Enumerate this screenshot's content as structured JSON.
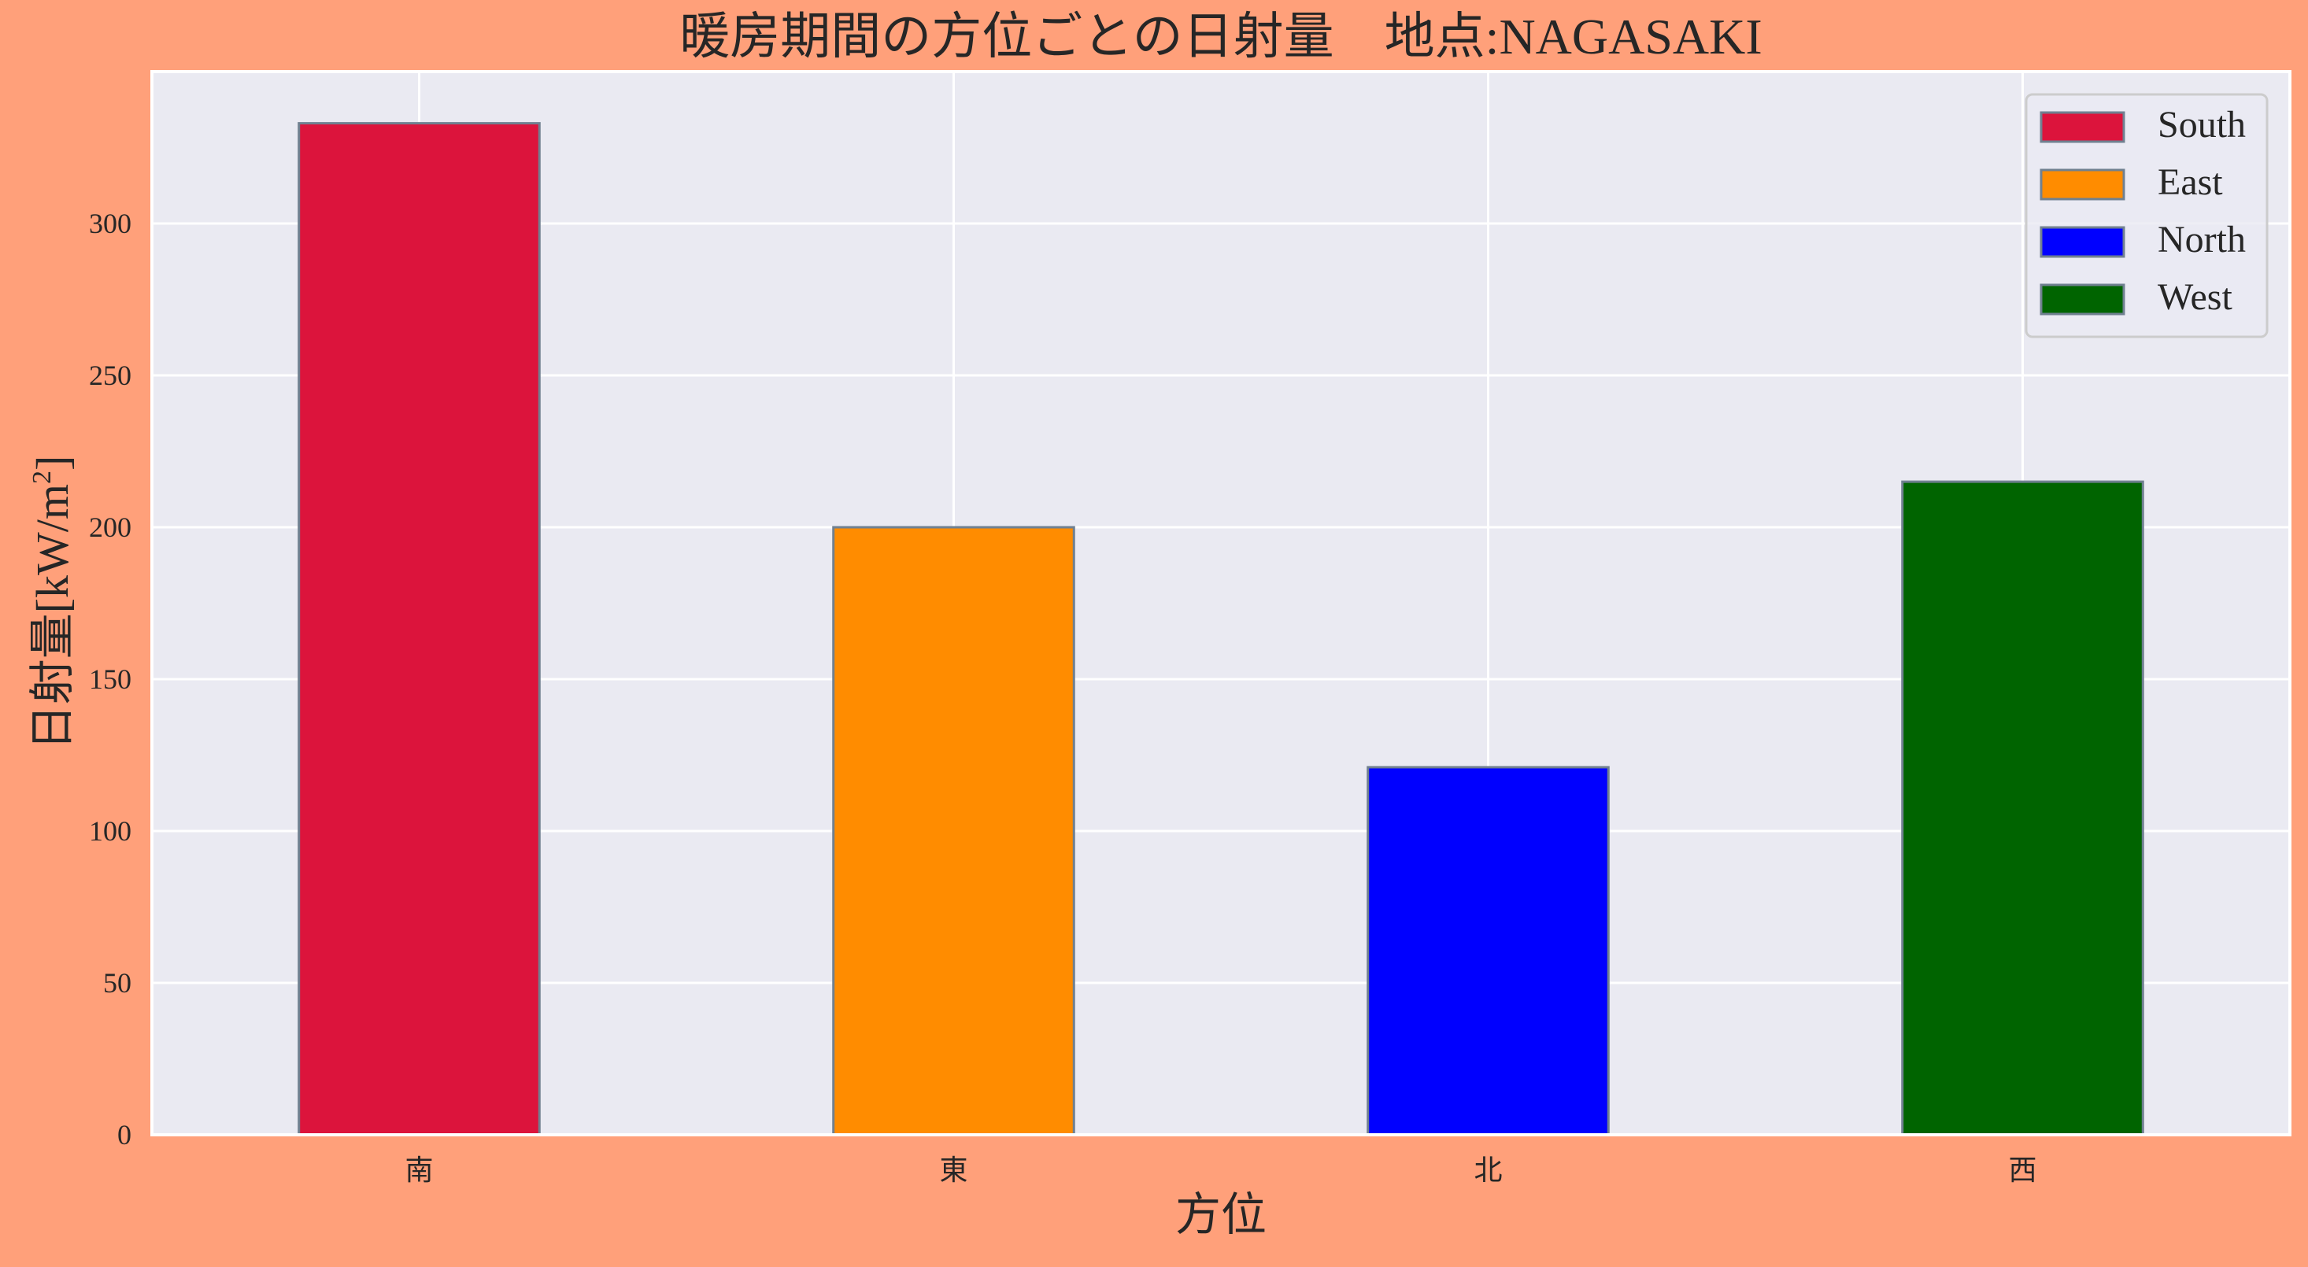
{
  "background_color": "#FFA07A",
  "plot_background_color": "#EAEAF2",
  "grid_color": "#FFFFFF",
  "chart_data": {
    "type": "bar",
    "title": "暖房期間の方位ごとの日射量　地点:NAGASAKI",
    "xlabel": "方位",
    "ylabel_main": "日射量[kW/m",
    "ylabel_sup": "2",
    "ylabel_close": "]",
    "categories": [
      "南",
      "東",
      "北",
      "西"
    ],
    "values": [
      333,
      200,
      121,
      215
    ],
    "colors": [
      "#DC143C",
      "#FF8C00",
      "#0000FF",
      "#006400"
    ],
    "bar_edge_color": "#708090",
    "ylim": [
      0,
      350
    ],
    "yticks": [
      0,
      50,
      100,
      150,
      200,
      250,
      300
    ],
    "grid": true,
    "legend": {
      "position": "top-right",
      "entries": [
        {
          "label": "South",
          "color": "#DC143C"
        },
        {
          "label": "East",
          "color": "#FF8C00"
        },
        {
          "label": "North",
          "color": "#0000FF"
        },
        {
          "label": "West",
          "color": "#006400"
        }
      ]
    }
  }
}
